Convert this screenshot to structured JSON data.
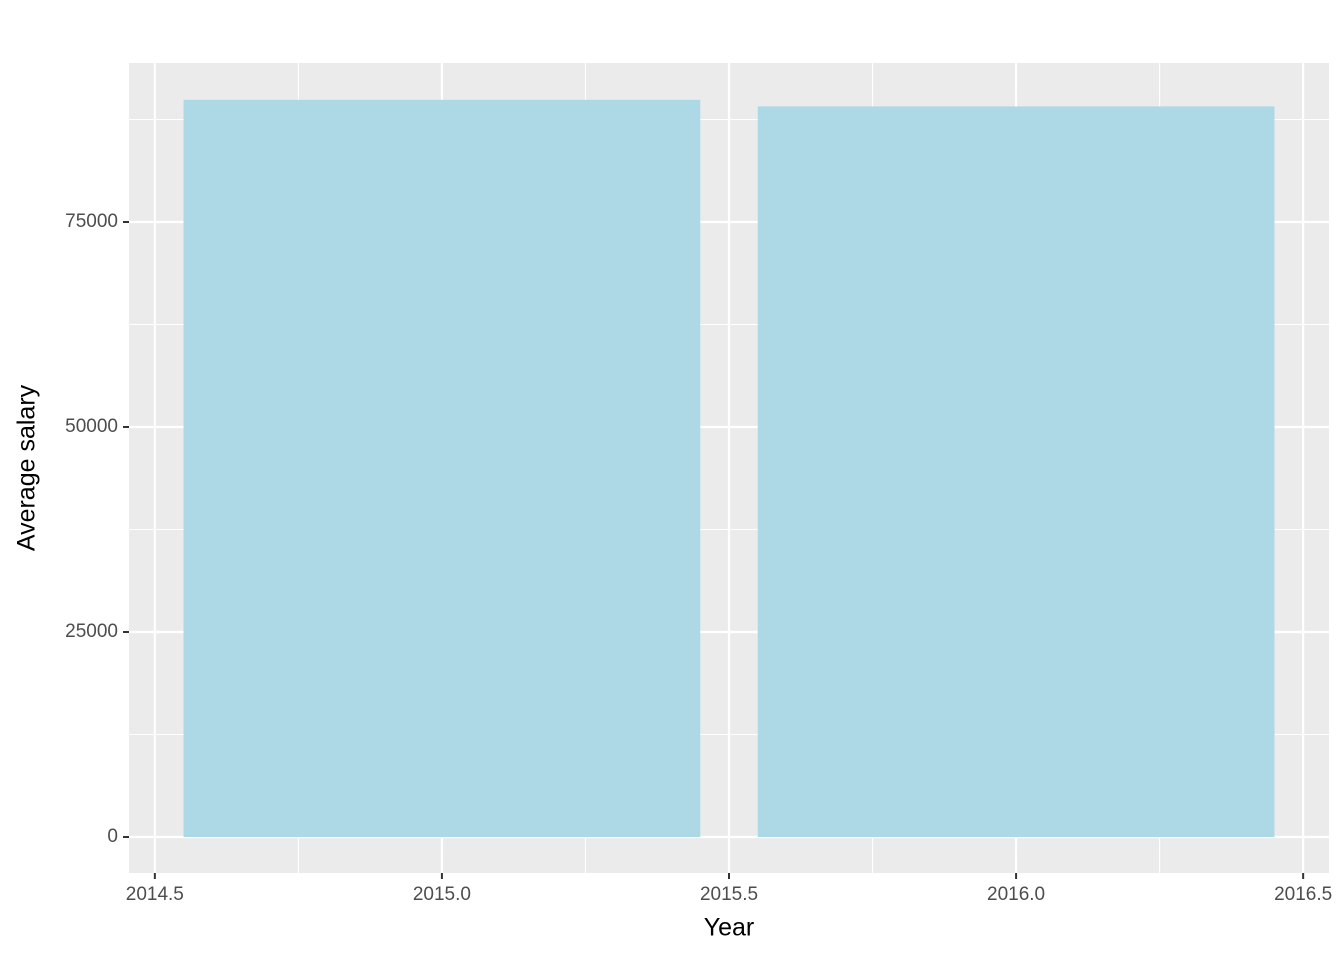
{
  "chart_data": {
    "type": "bar",
    "x_label": "Year",
    "y_label": "Average salary",
    "x": [
      2015,
      2016
    ],
    "values": [
      89900,
      89100
    ],
    "color": "#add8e6",
    "xlim": [
      2014.455,
      2016.545
    ],
    "xticks": [
      2014.5,
      {
        "value": 2015,
        "label": "2015.0"
      },
      2015.5,
      {
        "value": 2016,
        "label": "2016.0"
      },
      2016.5
    ],
    "ylim": [
      -4390,
      94390
    ],
    "yticks": [
      0,
      25000,
      50000,
      75000
    ],
    "grid": true
  }
}
